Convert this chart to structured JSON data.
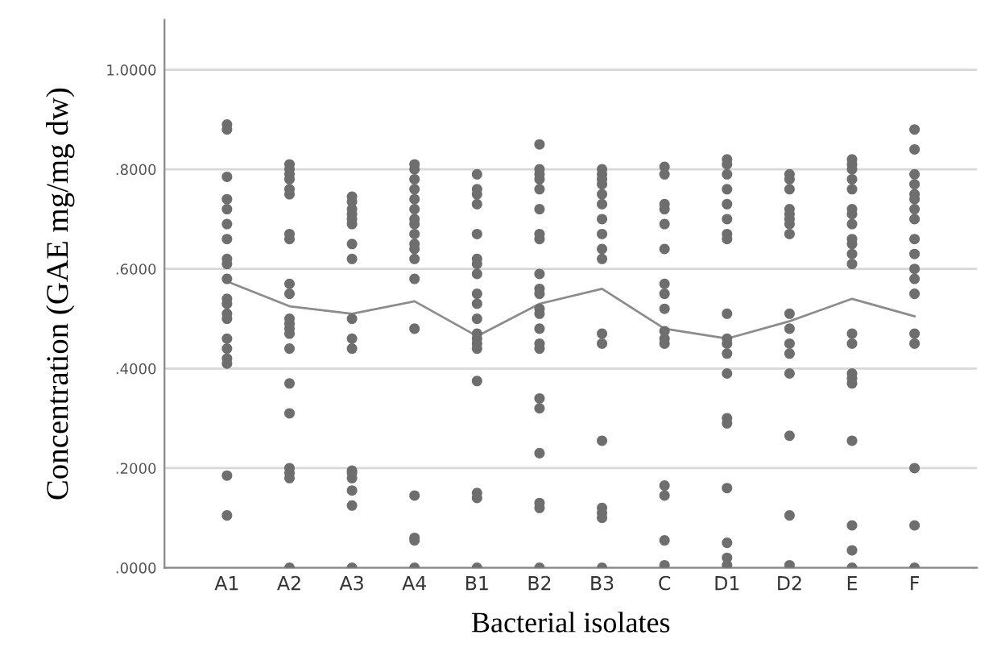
{
  "chart_data": {
    "type": "scatter",
    "xlabel": "Bacterial isolates",
    "ylabel": "Concentration (GAE mg/mg dw)",
    "categories": [
      "A1",
      "A2",
      "A3",
      "A4",
      "B1",
      "B2",
      "B3",
      "C",
      "D1",
      "D2",
      "E",
      "F"
    ],
    "ylim": [
      0,
      1.1
    ],
    "yticks": [
      {
        "value": 0,
        "label": ".0000"
      },
      {
        "value": 0.2,
        "label": ".2000"
      },
      {
        "value": 0.4,
        "label": ".4000"
      },
      {
        "value": 0.6,
        "label": ".6000"
      },
      {
        "value": 0.8,
        "label": ".8000"
      },
      {
        "value": 1.0,
        "label": "1.0000"
      }
    ],
    "grid": "y",
    "marker": "circle",
    "series": [
      {
        "color": "#6e6e6e",
        "x": [
          "A1",
          "A1",
          "A1",
          "A1",
          "A1",
          "A1",
          "A1",
          "A1",
          "A1",
          "A1",
          "A1",
          "A1",
          "A1",
          "A1",
          "A1",
          "A1",
          "A1",
          "A1",
          "A1",
          "A1"
        ],
        "values": [
          0.89,
          0.88,
          0.785,
          0.74,
          0.72,
          0.69,
          0.66,
          0.62,
          0.61,
          0.58,
          0.54,
          0.53,
          0.51,
          0.5,
          0.46,
          0.44,
          0.42,
          0.41,
          0.185,
          0.105
        ]
      },
      {
        "color": "#6e6e6e",
        "x": [
          "A2",
          "A2",
          "A2",
          "A2",
          "A2",
          "A2",
          "A2",
          "A2",
          "A2",
          "A2",
          "A2",
          "A2",
          "A2",
          "A2",
          "A2",
          "A2",
          "A2",
          "A2",
          "A2",
          "A2",
          "A2"
        ],
        "values": [
          0.81,
          0.8,
          0.79,
          0.78,
          0.76,
          0.75,
          0.67,
          0.66,
          0.57,
          0.55,
          0.5,
          0.49,
          0.48,
          0.47,
          0.44,
          0.37,
          0.31,
          0.2,
          0.19,
          0.18,
          0.0
        ]
      },
      {
        "color": "#6e6e6e",
        "x": [
          "A3",
          "A3",
          "A3",
          "A3",
          "A3",
          "A3",
          "A3",
          "A3",
          "A3",
          "A3",
          "A3",
          "A3",
          "A3",
          "A3",
          "A3",
          "A3",
          "A3"
        ],
        "values": [
          0.745,
          0.735,
          0.72,
          0.71,
          0.7,
          0.69,
          0.65,
          0.62,
          0.5,
          0.46,
          0.44,
          0.195,
          0.19,
          0.18,
          0.155,
          0.125,
          0.0
        ]
      },
      {
        "color": "#6e6e6e",
        "x": [
          "A4",
          "A4",
          "A4",
          "A4",
          "A4",
          "A4",
          "A4",
          "A4",
          "A4",
          "A4",
          "A4",
          "A4",
          "A4",
          "A4",
          "A4",
          "A4",
          "A4",
          "A4"
        ],
        "values": [
          0.81,
          0.8,
          0.78,
          0.76,
          0.74,
          0.72,
          0.7,
          0.69,
          0.67,
          0.65,
          0.64,
          0.62,
          0.58,
          0.48,
          0.145,
          0.06,
          0.055,
          0.0
        ]
      },
      {
        "color": "#6e6e6e",
        "x": [
          "B1",
          "B1",
          "B1",
          "B1",
          "B1",
          "B1",
          "B1",
          "B1",
          "B1",
          "B1",
          "B1",
          "B1",
          "B1",
          "B1",
          "B1",
          "B1",
          "B1",
          "B1",
          "B1"
        ],
        "values": [
          0.79,
          0.76,
          0.75,
          0.73,
          0.67,
          0.62,
          0.61,
          0.59,
          0.55,
          0.53,
          0.5,
          0.47,
          0.46,
          0.45,
          0.44,
          0.375,
          0.15,
          0.14,
          0.0
        ]
      },
      {
        "color": "#6e6e6e",
        "x": [
          "B2",
          "B2",
          "B2",
          "B2",
          "B2",
          "B2",
          "B2",
          "B2",
          "B2",
          "B2",
          "B2",
          "B2",
          "B2",
          "B2",
          "B2",
          "B2",
          "B2",
          "B2",
          "B2",
          "B2",
          "B2",
          "B2"
        ],
        "values": [
          0.85,
          0.8,
          0.79,
          0.78,
          0.76,
          0.72,
          0.67,
          0.66,
          0.59,
          0.56,
          0.55,
          0.52,
          0.51,
          0.48,
          0.45,
          0.44,
          0.34,
          0.32,
          0.23,
          0.13,
          0.12,
          0.0
        ]
      },
      {
        "color": "#6e6e6e",
        "x": [
          "B3",
          "B3",
          "B3",
          "B3",
          "B3",
          "B3",
          "B3",
          "B3",
          "B3",
          "B3",
          "B3",
          "B3",
          "B3",
          "B3",
          "B3",
          "B3",
          "B3"
        ],
        "values": [
          0.8,
          0.79,
          0.78,
          0.77,
          0.75,
          0.73,
          0.7,
          0.67,
          0.64,
          0.62,
          0.47,
          0.45,
          0.255,
          0.12,
          0.11,
          0.1,
          0.0
        ]
      },
      {
        "color": "#6e6e6e",
        "x": [
          "C",
          "C",
          "C",
          "C",
          "C",
          "C",
          "C",
          "C",
          "C",
          "C",
          "C",
          "C",
          "C",
          "C",
          "C",
          "C"
        ],
        "values": [
          0.805,
          0.79,
          0.73,
          0.72,
          0.69,
          0.64,
          0.57,
          0.55,
          0.52,
          0.475,
          0.46,
          0.45,
          0.165,
          0.145,
          0.055,
          0.005
        ]
      },
      {
        "color": "#6e6e6e",
        "x": [
          "D1",
          "D1",
          "D1",
          "D1",
          "D1",
          "D1",
          "D1",
          "D1",
          "D1",
          "D1",
          "D1",
          "D1",
          "D1",
          "D1",
          "D1",
          "D1",
          "D1",
          "D1",
          "D1"
        ],
        "values": [
          0.82,
          0.81,
          0.79,
          0.76,
          0.73,
          0.7,
          0.67,
          0.66,
          0.51,
          0.46,
          0.45,
          0.43,
          0.39,
          0.3,
          0.29,
          0.16,
          0.05,
          0.02,
          0.005
        ]
      },
      {
        "color": "#6e6e6e",
        "x": [
          "D2",
          "D2",
          "D2",
          "D2",
          "D2",
          "D2",
          "D2",
          "D2",
          "D2",
          "D2",
          "D2",
          "D2",
          "D2",
          "D2",
          "D2",
          "D2"
        ],
        "values": [
          0.79,
          0.78,
          0.76,
          0.72,
          0.71,
          0.7,
          0.69,
          0.67,
          0.51,
          0.48,
          0.45,
          0.43,
          0.39,
          0.265,
          0.105,
          0.005
        ]
      },
      {
        "color": "#6e6e6e",
        "x": [
          "E",
          "E",
          "E",
          "E",
          "E",
          "E",
          "E",
          "E",
          "E",
          "E",
          "E",
          "E",
          "E",
          "E",
          "E",
          "E",
          "E",
          "E",
          "E",
          "E",
          "E"
        ],
        "values": [
          0.82,
          0.81,
          0.8,
          0.78,
          0.76,
          0.72,
          0.71,
          0.69,
          0.66,
          0.65,
          0.63,
          0.61,
          0.47,
          0.45,
          0.39,
          0.38,
          0.37,
          0.255,
          0.085,
          0.035,
          0.0
        ]
      },
      {
        "color": "#6e6e6e",
        "x": [
          "F",
          "F",
          "F",
          "F",
          "F",
          "F",
          "F",
          "F",
          "F",
          "F",
          "F",
          "F",
          "F",
          "F",
          "F",
          "F",
          "F",
          "F"
        ],
        "values": [
          0.88,
          0.84,
          0.79,
          0.77,
          0.75,
          0.74,
          0.72,
          0.7,
          0.66,
          0.63,
          0.6,
          0.58,
          0.55,
          0.47,
          0.45,
          0.2,
          0.085,
          0.0
        ]
      },
      {
        "type": "line",
        "color": "#8c8c8c",
        "marker": "none",
        "values": [
          0.575,
          0.525,
          0.51,
          0.535,
          0.465,
          0.53,
          0.56,
          0.48,
          0.46,
          0.495,
          0.54,
          0.505
        ]
      }
    ]
  }
}
